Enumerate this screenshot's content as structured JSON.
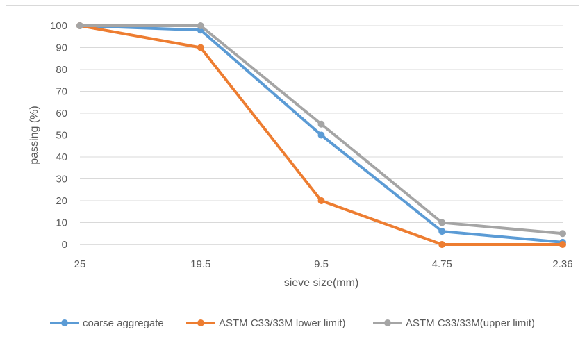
{
  "chart_data": {
    "type": "line",
    "categories": [
      "25",
      "19.5",
      "9.5",
      "4.75",
      "2.36"
    ],
    "series": [
      {
        "name": "coarse aggregate",
        "values": [
          100,
          98,
          50,
          6,
          1
        ],
        "color": "#5b9bd5"
      },
      {
        "name": "ASTM C33/33M lower limit)",
        "values": [
          100,
          90,
          20,
          0,
          0
        ],
        "color": "#ed7d31"
      },
      {
        "name": "ASTM C33/33M(upper limit)",
        "values": [
          100,
          100,
          55,
          10,
          5
        ],
        "color": "#a5a5a5"
      }
    ],
    "xlabel": "sieve size(mm)",
    "ylabel": "passing (%)",
    "ylim": [
      0,
      100
    ],
    "yticks": [
      0,
      10,
      20,
      30,
      40,
      50,
      60,
      70,
      80,
      90,
      100
    ],
    "grid": true,
    "legend_position": "bottom"
  }
}
